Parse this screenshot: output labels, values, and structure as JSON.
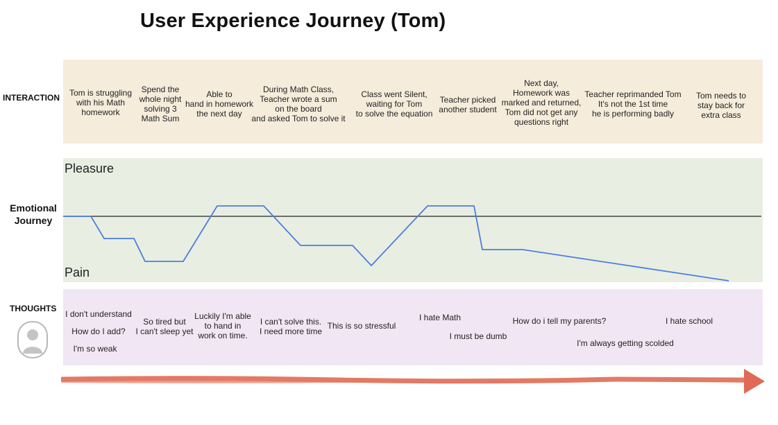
{
  "title": "User Experience Journey (Tom)",
  "rows": {
    "interaction": "INTERACTION",
    "emotional": "Emotional Journey",
    "thoughts": "THOUGHTS"
  },
  "scale": {
    "top": "Pleasure",
    "bottom": "Pain"
  },
  "interactions": [
    "Tom is struggling\nwith his Math\nhomework",
    "Spend the\nwhole night\nsolving 3\nMath Sum",
    "Able to\nhand in homework\nthe next day",
    "During Math Class,\nTeacher wrote a sum\non the board\nand asked Tom to solve it",
    "Class went Silent,\nwaiting for Tom\nto solve the equation",
    "Teacher picked\nanother student",
    "Next day,\nHomework was\nmarked and returned,\nTom did not get any\nquestions right",
    "Teacher reprimanded Tom\nIt's not the 1st time\nhe is performing badly",
    "Tom needs to\nstay back for\nextra class"
  ],
  "thoughts": [
    "I don't understand",
    "How do I add?",
    "I'm so weak",
    "So tired but\nI can't sleep yet",
    "Luckily I'm able\nto hand in\nwork on time.",
    "I can't solve this.\nI need more time",
    "This is so stressful",
    "I hate Math",
    "I must be dumb",
    "How do i tell my parents?",
    "I'm always getting scolded",
    "I hate school"
  ],
  "colors": {
    "emotion_line": "#4a7de0",
    "baseline": "#222222",
    "timeline_arrow": "#e06a55",
    "interaction_bg": "#f6ecdc",
    "emotion_bg": "#e8eee2",
    "thoughts_bg": "#f1e6f4"
  },
  "icons": {
    "thoughts_avatar": "user-avatar-icon",
    "timeline": "timeline-arrow-icon"
  }
}
